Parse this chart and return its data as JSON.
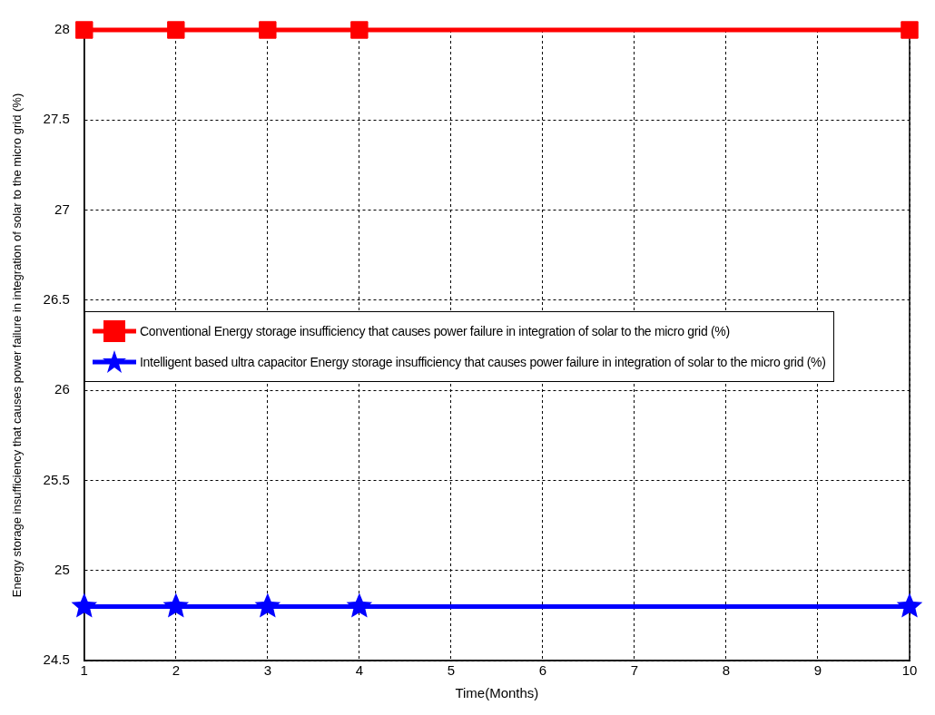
{
  "chart_data": {
    "type": "line",
    "xlabel": "Time(Months)",
    "ylabel": "Energy storage insufficiency that causes power failure in integration of solar to the micro grid (%)",
    "xlim": [
      1,
      10
    ],
    "xticks": [
      1,
      2,
      3,
      4,
      5,
      6,
      7,
      8,
      9,
      10
    ],
    "ylim": [
      24.5,
      28
    ],
    "yticks": [
      24.5,
      25,
      25.5,
      26,
      26.5,
      27,
      27.5,
      28
    ],
    "grid": true,
    "legend": "left",
    "line_style": "solid",
    "series": [
      {
        "name": "Conventional Energy storage insufficiency that causes power failure in integration of solar to the micro grid (%)",
        "color": "#ff0000",
        "marker": "square",
        "x": [
          1,
          2,
          3,
          4,
          10
        ],
        "values": [
          28,
          28,
          28,
          28,
          28
        ]
      },
      {
        "name": "Intelligent based ultra capacitor Energy storage insufficiency that causes  power failure in integration of solar to the micro grid (%)",
        "color": "#0000ff",
        "marker": "star",
        "x": [
          1,
          2,
          3,
          4,
          10
        ],
        "values": [
          24.8,
          24.8,
          24.8,
          24.8,
          24.8
        ]
      }
    ]
  }
}
